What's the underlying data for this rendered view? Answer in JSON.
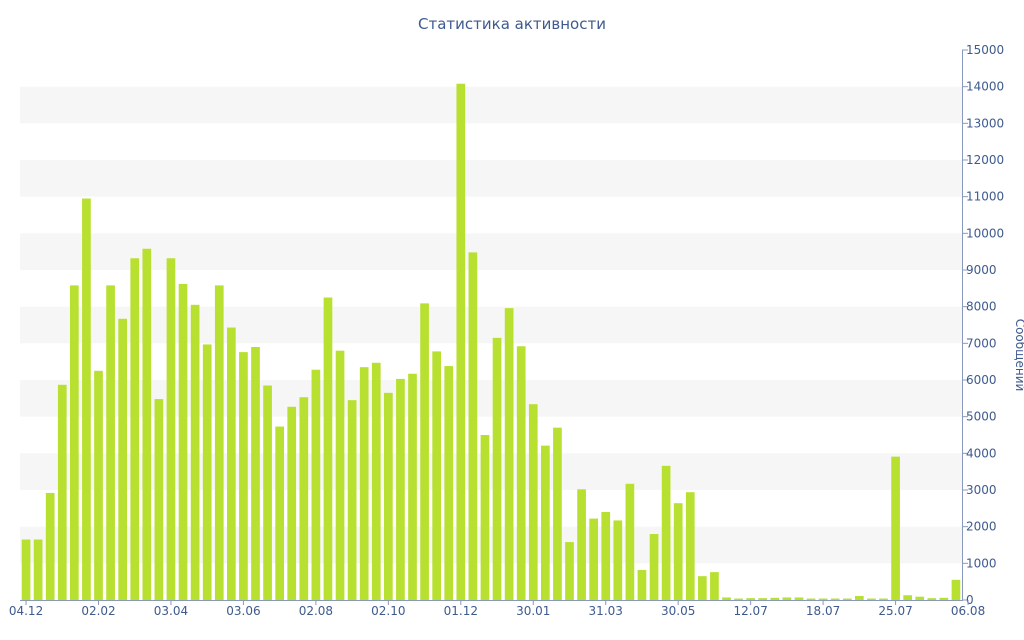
{
  "chart_data": {
    "type": "bar",
    "title": "Статистика активности",
    "xlabel": "",
    "ylabel": "Сообщений",
    "ylim": [
      0,
      15000
    ],
    "y_ticks": [
      0,
      1000,
      2000,
      3000,
      4000,
      5000,
      6000,
      7000,
      8000,
      9000,
      10000,
      11000,
      12000,
      13000,
      14000,
      15000
    ],
    "y_axis_position": "right",
    "grid": "alternating horizontal bands",
    "bar_color": "#b8e030",
    "band_color": "#f6f6f6",
    "text_color": "#3e5a8e",
    "x_tick_labels": [
      {
        "label": "04.12",
        "bar_index": 0
      },
      {
        "label": "02.02",
        "bar_index": 6
      },
      {
        "label": "03.04",
        "bar_index": 12
      },
      {
        "label": "03.06",
        "bar_index": 18
      },
      {
        "label": "02.08",
        "bar_index": 24
      },
      {
        "label": "02.10",
        "bar_index": 30
      },
      {
        "label": "01.12",
        "bar_index": 36
      },
      {
        "label": "30.01",
        "bar_index": 42
      },
      {
        "label": "31.03",
        "bar_index": 48
      },
      {
        "label": "30.05",
        "bar_index": 54
      },
      {
        "label": "12.07",
        "bar_index": 60
      },
      {
        "label": "18.07",
        "bar_index": 66
      },
      {
        "label": "25.07",
        "bar_index": 72
      },
      {
        "label": "06.08",
        "bar_index": 78
      }
    ],
    "values": [
      1650,
      1650,
      2920,
      5870,
      8580,
      10950,
      6250,
      8580,
      7670,
      9320,
      9580,
      5480,
      9320,
      8620,
      8050,
      6970,
      8580,
      7430,
      6760,
      6900,
      5850,
      4730,
      5270,
      5530,
      6280,
      8250,
      6800,
      5450,
      6350,
      6470,
      5650,
      6030,
      6170,
      8090,
      6780,
      6380,
      14080,
      9480,
      4500,
      7150,
      7960,
      6920,
      5340,
      4210,
      4700,
      1580,
      3020,
      2220,
      2400,
      2170,
      3170,
      820,
      1800,
      3660,
      2640,
      2940,
      650,
      760,
      70,
      40,
      50,
      50,
      60,
      70,
      70,
      40,
      40,
      40,
      40,
      110,
      40,
      40,
      3910,
      130,
      90,
      50,
      60,
      550
    ]
  }
}
